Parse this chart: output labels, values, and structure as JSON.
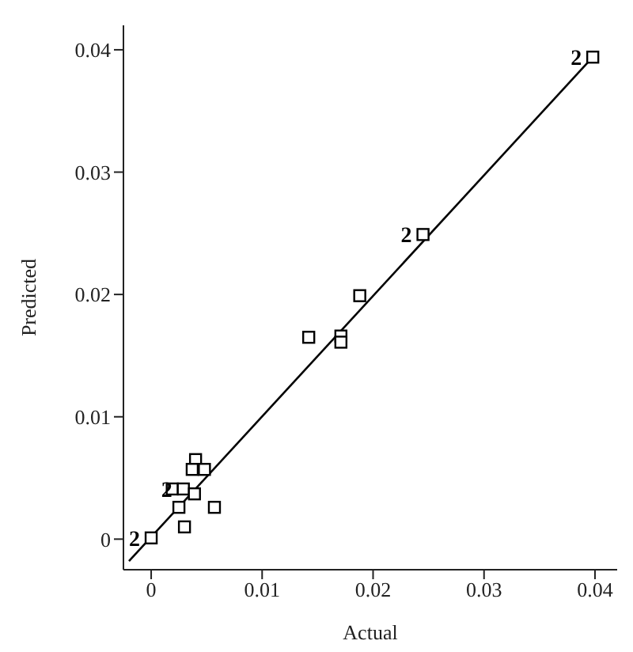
{
  "chart_data": {
    "type": "scatter",
    "xlabel": "Actual",
    "ylabel": "Predicted",
    "xlim": [
      -0.0025,
      0.042
    ],
    "ylim": [
      -0.0025,
      0.042
    ],
    "xticks": [
      0,
      0.01,
      0.02,
      0.03,
      0.04
    ],
    "yticks": [
      0,
      0.01,
      0.02,
      0.03,
      0.04
    ],
    "grid": false,
    "legend": false,
    "marker": "square",
    "series": [
      {
        "type": "scatter",
        "color": "#000000",
        "x": [
          0,
          0.0398,
          0.0245,
          0.0188,
          0.0142,
          0.0171,
          0.0171,
          0.004,
          0.0037,
          0.0048,
          0.0019,
          0.0029,
          0.0039,
          0.0025,
          0.0057,
          0.003
        ],
        "values": [
          0.0001,
          0.0394,
          0.0249,
          0.0199,
          0.0165,
          0.0166,
          0.0161,
          0.0065,
          0.0057,
          0.0057,
          0.0041,
          0.0041,
          0.0037,
          0.0026,
          0.0026,
          0.001
        ]
      },
      {
        "type": "line",
        "color": "#000000",
        "line_style": "solid",
        "marker": "none",
        "x": [
          -0.002,
          0.0398
        ],
        "values": [
          -0.0018,
          0.0394
        ]
      }
    ],
    "annotations": [
      {
        "text": "2",
        "x": 0,
        "y": 0.0001
      },
      {
        "text": "2",
        "x": 0.0398,
        "y": 0.0394
      },
      {
        "text": "2",
        "x": 0.0245,
        "y": 0.0249
      },
      {
        "text": "2",
        "x": 0.0029,
        "y": 0.0041
      }
    ]
  }
}
